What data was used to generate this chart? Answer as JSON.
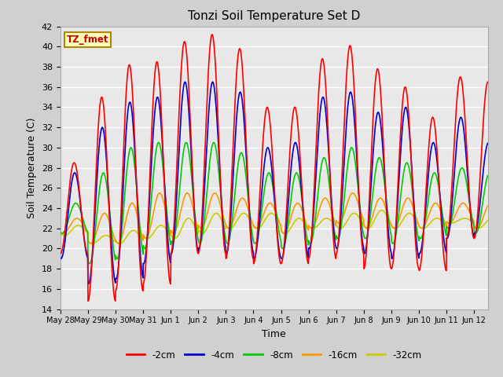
{
  "title": "Tonzi Soil Temperature Set D",
  "xlabel": "Time",
  "ylabel": "Soil Temperature (C)",
  "ylim": [
    14,
    42
  ],
  "yticks": [
    14,
    16,
    18,
    20,
    22,
    24,
    26,
    28,
    30,
    32,
    34,
    36,
    38,
    40,
    42
  ],
  "bg_color": "#e8e8e8",
  "fig_bg_color": "#d0d0d0",
  "legend_label": "TZ_fmet",
  "series_labels": [
    "-2cm",
    "-4cm",
    "-8cm",
    "-16cm",
    "-32cm"
  ],
  "series_colors": [
    "#ff0000",
    "#0000cc",
    "#00cc00",
    "#ff9900",
    "#cccc00"
  ],
  "tick_labels": [
    "May 28",
    "May 29",
    "May 30",
    "May 31",
    "Jun 1",
    "Jun 2",
    "Jun 3",
    "Jun 4",
    "Jun 5",
    "Jun 6",
    "Jun 7",
    "Jun 8",
    "Jun 9",
    "Jun 10",
    "Jun 11",
    "Jun 12"
  ],
  "tick_positions": [
    0,
    1,
    2,
    3,
    4,
    5,
    6,
    7,
    8,
    9,
    10,
    11,
    12,
    13,
    14,
    15
  ],
  "peaks_2cm": [
    28.5,
    35.0,
    38.2,
    38.5,
    40.5,
    41.2,
    39.8,
    34.0,
    34.0,
    38.8,
    40.1,
    37.8,
    36.0,
    33.0,
    37.0,
    36.5
  ],
  "troughs_2cm": [
    19.5,
    14.8,
    15.8,
    16.5,
    19.5,
    19.5,
    19.0,
    18.5,
    18.5,
    19.0,
    19.5,
    18.0,
    18.0,
    17.8,
    21.0,
    21.0
  ],
  "peaks_4cm": [
    27.5,
    32.0,
    34.5,
    35.0,
    36.5,
    36.5,
    35.5,
    30.0,
    30.5,
    35.0,
    35.5,
    33.5,
    34.0,
    30.5,
    33.0,
    30.5
  ],
  "troughs_4cm": [
    19.0,
    16.5,
    17.0,
    18.5,
    19.5,
    20.0,
    19.5,
    19.0,
    19.0,
    20.0,
    20.0,
    19.5,
    19.0,
    19.5,
    21.0,
    21.5
  ],
  "peaks_8cm": [
    24.5,
    27.5,
    30.0,
    30.5,
    30.5,
    30.5,
    29.5,
    27.5,
    27.5,
    29.0,
    30.0,
    29.0,
    28.5,
    27.5,
    28.0,
    27.5
  ],
  "troughs_8cm": [
    21.5,
    18.5,
    19.0,
    20.0,
    20.5,
    20.5,
    20.5,
    20.5,
    20.0,
    20.5,
    21.0,
    21.0,
    20.5,
    21.0,
    22.0,
    21.5
  ],
  "peaks_16cm": [
    23.0,
    23.5,
    24.5,
    25.5,
    25.5,
    25.5,
    25.0,
    24.5,
    24.5,
    25.0,
    25.5,
    25.0,
    25.0,
    24.5,
    24.5,
    24.5
  ],
  "troughs_16cm": [
    21.5,
    20.5,
    20.5,
    21.0,
    21.5,
    22.0,
    22.0,
    22.0,
    21.5,
    22.0,
    22.5,
    22.0,
    22.0,
    22.0,
    22.5,
    22.0
  ],
  "peaks_32cm": [
    22.3,
    21.3,
    21.8,
    22.3,
    23.0,
    23.5,
    23.5,
    23.5,
    23.0,
    23.0,
    23.5,
    23.8,
    23.5,
    23.0,
    23.0,
    23.0
  ],
  "troughs_32cm": [
    21.3,
    20.5,
    20.5,
    21.0,
    21.0,
    21.5,
    22.0,
    22.0,
    21.5,
    22.0,
    22.0,
    22.0,
    22.0,
    22.0,
    22.5,
    22.0
  ],
  "phase_2cm": 0.5,
  "phase_4cm": 0.52,
  "phase_8cm": 0.56,
  "phase_16cm": 0.6,
  "phase_32cm": 0.65
}
